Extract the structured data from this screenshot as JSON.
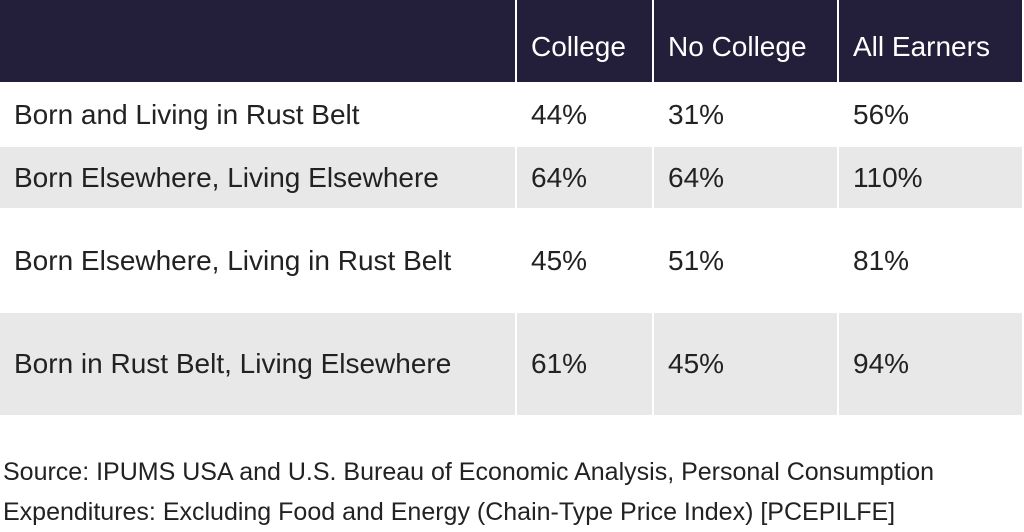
{
  "table": {
    "header": [
      "College",
      "No College",
      "All Earners"
    ],
    "rows": [
      [
        "Born and Living in Rust Belt",
        "44%",
        "31%",
        "56%"
      ],
      [
        "Born Elsewhere, Living Elsewhere",
        "64%",
        "64%",
        "110%"
      ],
      [
        "Born Elsewhere, Living in Rust Belt",
        "45%",
        "51%",
        "81%"
      ],
      [
        "Born in Rust Belt, Living Elsewhere",
        "61%",
        "45%",
        "94%"
      ]
    ]
  },
  "source": "Source: IPUMS USA and U.S. Bureau of Economic Analysis, Personal Consumption Expenditures: Excluding Food and Energy (Chain-Type Price Index) [PCEPILFE]"
}
